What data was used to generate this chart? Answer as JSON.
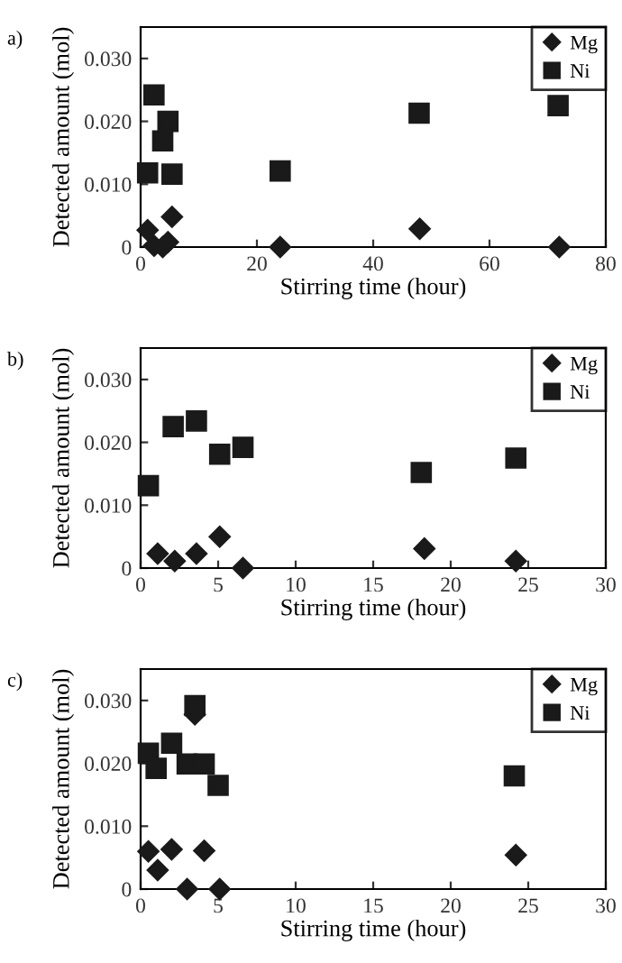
{
  "chart_data": [
    {
      "type": "scatter",
      "title": "a)",
      "xlabel": "Stirring time (hour)",
      "ylabel": "Detected amount (mol)",
      "xlim": [
        0,
        80
      ],
      "xticks": [
        0,
        20,
        40,
        60,
        80
      ],
      "ylim": [
        0,
        0.035
      ],
      "yticks": [
        {
          "value": 0,
          "label": "0"
        },
        {
          "value": 0.01,
          "label": "0.010"
        },
        {
          "value": 0.02,
          "label": "0.020"
        },
        {
          "value": 0.03,
          "label": "0.030"
        }
      ],
      "legend": "top right",
      "grid": false,
      "series": [
        {
          "name": "Mg",
          "color": "#1a1a1a",
          "marker": "diamond",
          "x": [
            1.2,
            2.3,
            3.8,
            4.7,
            5.4,
            24,
            48,
            72
          ],
          "values": [
            0.0027,
            0.0002,
            0,
            0.0008,
            0.0048,
            0,
            0.0029,
            0
          ]
        },
        {
          "name": "Ni",
          "color": "#1a1a1a",
          "marker": "square",
          "x": [
            1.2,
            2.3,
            3.8,
            4.7,
            5.4,
            24,
            47.9,
            71.8
          ],
          "values": [
            0.0118,
            0.0242,
            0.0169,
            0.02,
            0.0116,
            0.0121,
            0.0213,
            0.0225
          ]
        }
      ]
    },
    {
      "type": "scatter",
      "title": "b)",
      "xlabel": "Stirring time (hour)",
      "ylabel": "Detected amount (mol)",
      "xlim": [
        0,
        30
      ],
      "xticks": [
        0,
        5,
        10,
        15,
        20,
        25,
        30
      ],
      "ylim": [
        0,
        0.035
      ],
      "yticks": [
        {
          "value": 0,
          "label": "0"
        },
        {
          "value": 0.01,
          "label": "0.010"
        },
        {
          "value": 0.02,
          "label": "0.020"
        },
        {
          "value": 0.03,
          "label": "0.030"
        }
      ],
      "legend": "top right",
      "grid": false,
      "series": [
        {
          "name": "Mg",
          "color": "#1a1a1a",
          "marker": "diamond",
          "x": [
            1.1,
            2.2,
            3.6,
            5.1,
            6.6,
            18.3,
            24.2
          ],
          "values": [
            0.0023,
            0.0011,
            0.0023,
            0.005,
            0,
            0.0031,
            0.0011
          ]
        },
        {
          "name": "Ni",
          "color": "#1a1a1a",
          "marker": "square",
          "x": [
            0.5,
            2.1,
            3.6,
            5.1,
            6.6,
            18.1,
            24.2
          ],
          "values": [
            0.0131,
            0.0225,
            0.0234,
            0.0181,
            0.0192,
            0.0152,
            0.0175
          ]
        }
      ]
    },
    {
      "type": "scatter",
      "title": "c)",
      "xlabel": "Stirring time (hour)",
      "ylabel": "Detected amount (mol)",
      "xlim": [
        0,
        30
      ],
      "xticks": [
        0,
        5,
        10,
        15,
        20,
        25,
        30
      ],
      "ylim": [
        0,
        0.035
      ],
      "yticks": [
        {
          "value": 0,
          "label": "0"
        },
        {
          "value": 0.01,
          "label": "0.010"
        },
        {
          "value": 0.02,
          "label": "0.020"
        },
        {
          "value": 0.03,
          "label": "0.030"
        }
      ],
      "legend": "top right",
      "grid": false,
      "series": [
        {
          "name": "Mg",
          "color": "#1a1a1a",
          "marker": "diamond",
          "x": [
            0.5,
            1.1,
            2.0,
            3.0,
            3.5,
            4.1,
            5.1,
            24.2
          ],
          "values": [
            0.006,
            0.003,
            0.0063,
            0,
            0.0278,
            0.0061,
            0,
            0.0054
          ]
        },
        {
          "name": "Ni",
          "color": "#1a1a1a",
          "marker": "square",
          "x": [
            0.5,
            1.0,
            2.0,
            3.0,
            3.5,
            4.1,
            5.0,
            24.1
          ],
          "values": [
            0.0216,
            0.0192,
            0.0232,
            0.0199,
            0.0292,
            0.0199,
            0.0165,
            0.018
          ]
        }
      ]
    }
  ]
}
